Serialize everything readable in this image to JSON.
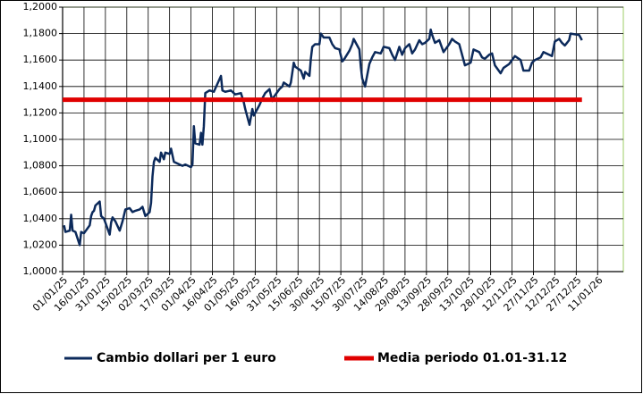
{
  "chart_data": {
    "type": "line",
    "xlim": [
      "2025-01-01",
      "2026-01-29"
    ],
    "xticks": [
      {
        "value": "2025-01-01",
        "label": "01/01/25"
      },
      {
        "value": "2025-01-16",
        "label": "16/01/25"
      },
      {
        "value": "2025-01-31",
        "label": "31/01/25"
      },
      {
        "value": "2025-02-15",
        "label": "15/02/25"
      },
      {
        "value": "2025-03-02",
        "label": "02/03/25"
      },
      {
        "value": "2025-03-17",
        "label": "17/03/25"
      },
      {
        "value": "2025-04-01",
        "label": "01/04/25"
      },
      {
        "value": "2025-04-16",
        "label": "16/04/25"
      },
      {
        "value": "2025-05-01",
        "label": "01/05/25"
      },
      {
        "value": "2025-05-16",
        "label": "16/05/25"
      },
      {
        "value": "2025-05-31",
        "label": "31/05/25"
      },
      {
        "value": "2025-06-15",
        "label": "15/06/25"
      },
      {
        "value": "2025-06-30",
        "label": "30/06/25"
      },
      {
        "value": "2025-07-15",
        "label": "15/07/25"
      },
      {
        "value": "2025-07-30",
        "label": "30/07/25"
      },
      {
        "value": "2025-08-14",
        "label": "14/08/25"
      },
      {
        "value": "2025-08-29",
        "label": "29/08/25"
      },
      {
        "value": "2025-09-13",
        "label": "13/09/25"
      },
      {
        "value": "2025-09-28",
        "label": "28/09/25"
      },
      {
        "value": "2025-10-13",
        "label": "13/10/25"
      },
      {
        "value": "2025-10-28",
        "label": "28/10/25"
      },
      {
        "value": "2025-11-12",
        "label": "12/11/25"
      },
      {
        "value": "2025-11-27",
        "label": "27/11/25"
      },
      {
        "value": "2025-12-12",
        "label": "12/12/25"
      },
      {
        "value": "2025-12-27",
        "label": "27/12/25"
      },
      {
        "value": "2026-01-11",
        "label": "11/01/26"
      }
    ],
    "ylim": [
      1.0,
      1.2
    ],
    "yticks": [
      {
        "value": 1.0,
        "label": "1,0000"
      },
      {
        "value": 1.02,
        "label": "1,0200"
      },
      {
        "value": 1.04,
        "label": "1,0400"
      },
      {
        "value": 1.06,
        "label": "1,0600"
      },
      {
        "value": 1.08,
        "label": "1,0800"
      },
      {
        "value": 1.1,
        "label": "1,1000"
      },
      {
        "value": 1.12,
        "label": "1,1200"
      },
      {
        "value": 1.14,
        "label": "1,1400"
      },
      {
        "value": 1.16,
        "label": "1,1600"
      },
      {
        "value": 1.18,
        "label": "1,1800"
      },
      {
        "value": 1.2,
        "label": "1,2000"
      }
    ],
    "grid": true,
    "legend": "bottom",
    "series": [
      {
        "name": "Cambio dollari per 1 euro",
        "color": "#0c2a5b",
        "x": [
          "2025-01-02",
          "2025-01-03",
          "2025-01-06",
          "2025-01-07",
          "2025-01-08",
          "2025-01-10",
          "2025-01-13",
          "2025-01-14",
          "2025-01-16",
          "2025-01-20",
          "2025-01-21",
          "2025-01-22",
          "2025-01-23",
          "2025-01-24",
          "2025-01-27",
          "2025-01-28",
          "2025-01-30",
          "2025-02-03",
          "2025-02-04",
          "2025-02-05",
          "2025-02-07",
          "2025-02-10",
          "2025-02-12",
          "2025-02-14",
          "2025-02-17",
          "2025-02-19",
          "2025-02-21",
          "2025-02-24",
          "2025-02-26",
          "2025-02-28",
          "2025-03-03",
          "2025-03-04",
          "2025-03-05",
          "2025-03-06",
          "2025-03-07",
          "2025-03-10",
          "2025-03-11",
          "2025-03-13",
          "2025-03-14",
          "2025-03-17",
          "2025-03-18",
          "2025-03-20",
          "2025-03-24",
          "2025-03-26",
          "2025-03-28",
          "2025-04-01",
          "2025-04-02",
          "2025-04-03",
          "2025-04-04",
          "2025-04-07",
          "2025-04-08",
          "2025-04-09",
          "2025-04-10",
          "2025-04-11",
          "2025-04-14",
          "2025-04-17",
          "2025-04-22",
          "2025-04-23",
          "2025-04-25",
          "2025-04-29",
          "2025-05-02",
          "2025-05-06",
          "2025-05-08",
          "2025-05-09",
          "2025-05-12",
          "2025-05-13",
          "2025-05-14",
          "2025-05-15",
          "2025-05-19",
          "2025-05-21",
          "2025-05-23",
          "2025-05-26",
          "2025-05-28",
          "2025-05-29",
          "2025-06-02",
          "2025-06-04",
          "2025-06-05",
          "2025-06-09",
          "2025-06-10",
          "2025-06-12",
          "2025-06-13",
          "2025-06-17",
          "2025-06-19",
          "2025-06-20",
          "2025-06-23",
          "2025-06-24",
          "2025-06-25",
          "2025-06-27",
          "2025-06-30",
          "2025-07-01",
          "2025-07-03",
          "2025-07-07",
          "2025-07-09",
          "2025-07-11",
          "2025-07-14",
          "2025-07-16",
          "2025-07-17",
          "2025-07-21",
          "2025-07-23",
          "2025-07-24",
          "2025-07-28",
          "2025-07-29",
          "2025-07-30",
          "2025-08-01",
          "2025-08-04",
          "2025-08-06",
          "2025-08-08",
          "2025-08-12",
          "2025-08-14",
          "2025-08-18",
          "2025-08-20",
          "2025-08-22",
          "2025-08-25",
          "2025-08-27",
          "2025-08-29",
          "2025-09-01",
          "2025-09-03",
          "2025-09-05",
          "2025-09-08",
          "2025-09-10",
          "2025-09-12",
          "2025-09-15",
          "2025-09-16",
          "2025-09-17",
          "2025-09-19",
          "2025-09-22",
          "2025-09-25",
          "2025-09-29",
          "2025-10-01",
          "2025-10-03",
          "2025-10-06",
          "2025-10-08",
          "2025-10-10",
          "2025-10-14",
          "2025-10-16",
          "2025-10-20",
          "2025-10-22",
          "2025-10-24",
          "2025-10-27",
          "2025-10-29",
          "2025-10-31",
          "2025-11-04",
          "2025-11-06",
          "2025-11-10",
          "2025-11-14",
          "2025-11-18",
          "2025-11-20",
          "2025-11-24",
          "2025-11-26",
          "2025-11-28",
          "2025-12-02",
          "2025-12-04",
          "2025-12-08",
          "2025-12-10",
          "2025-12-12",
          "2025-12-15",
          "2025-12-17",
          "2025-12-19",
          "2025-12-22",
          "2025-12-23",
          "2025-12-29",
          "2025-12-31"
        ],
        "values": [
          1.035,
          1.03,
          1.031,
          1.043,
          1.031,
          1.03,
          1.02,
          1.03,
          1.029,
          1.035,
          1.042,
          1.045,
          1.046,
          1.05,
          1.053,
          1.042,
          1.04,
          1.028,
          1.037,
          1.041,
          1.038,
          1.031,
          1.038,
          1.047,
          1.048,
          1.045,
          1.046,
          1.047,
          1.049,
          1.042,
          1.045,
          1.052,
          1.072,
          1.083,
          1.086,
          1.083,
          1.09,
          1.085,
          1.09,
          1.089,
          1.093,
          1.083,
          1.081,
          1.08,
          1.081,
          1.079,
          1.081,
          1.11,
          1.097,
          1.096,
          1.105,
          1.096,
          1.11,
          1.135,
          1.137,
          1.136,
          1.148,
          1.137,
          1.136,
          1.137,
          1.134,
          1.135,
          1.128,
          1.123,
          1.111,
          1.117,
          1.123,
          1.118,
          1.126,
          1.131,
          1.135,
          1.138,
          1.129,
          1.132,
          1.138,
          1.14,
          1.143,
          1.14,
          1.143,
          1.158,
          1.155,
          1.152,
          1.146,
          1.151,
          1.148,
          1.161,
          1.17,
          1.172,
          1.172,
          1.18,
          1.177,
          1.177,
          1.172,
          1.169,
          1.168,
          1.159,
          1.16,
          1.167,
          1.172,
          1.176,
          1.168,
          1.155,
          1.146,
          1.14,
          1.157,
          1.162,
          1.166,
          1.165,
          1.17,
          1.169,
          1.164,
          1.16,
          1.17,
          1.164,
          1.169,
          1.172,
          1.165,
          1.168,
          1.175,
          1.172,
          1.173,
          1.176,
          1.183,
          1.179,
          1.173,
          1.175,
          1.166,
          1.172,
          1.176,
          1.174,
          1.172,
          1.164,
          1.156,
          1.158,
          1.168,
          1.166,
          1.162,
          1.161,
          1.164,
          1.165,
          1.156,
          1.15,
          1.154,
          1.157,
          1.163,
          1.16,
          1.152,
          1.152,
          1.158,
          1.16,
          1.162,
          1.166,
          1.164,
          1.163,
          1.174,
          1.176,
          1.173,
          1.171,
          1.175,
          1.18,
          1.179,
          1.175
        ]
      },
      {
        "name": "Media periodo 01.01-31.12",
        "color": "#e00000",
        "x": [
          "2025-01-01",
          "2025-12-31"
        ],
        "values": [
          1.13,
          1.13
        ]
      }
    ]
  }
}
